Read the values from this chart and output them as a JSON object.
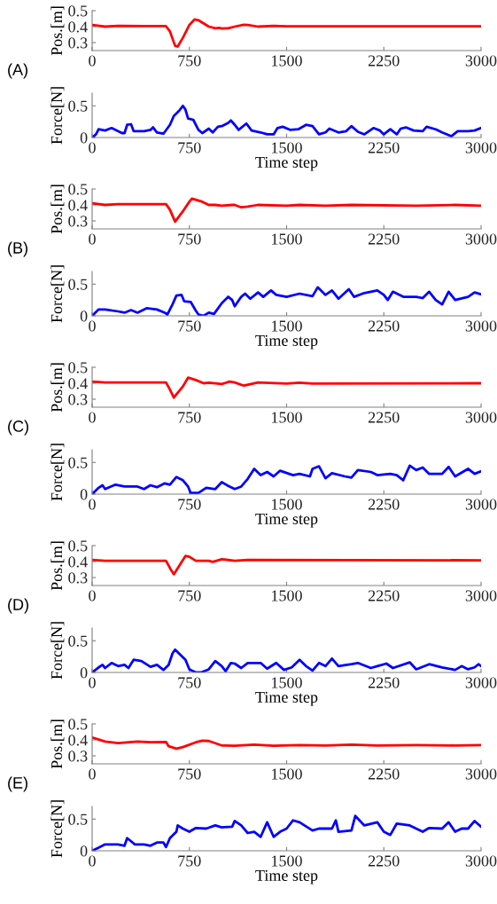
{
  "chart_data": [
    {
      "type": "line",
      "ylabel": "Pos.[m]",
      "annotations": [
        "(A)"
      ],
      "xlim": [
        0,
        3000
      ],
      "xticks": [
        0,
        750,
        1500,
        2250,
        3000
      ],
      "ylim": [
        0.25,
        0.5
      ],
      "yticks": [
        0.3,
        0.4,
        0.5
      ],
      "series": [
        {
          "color": "#ff0000",
          "x": [
            0,
            100,
            200,
            400,
            570,
            600,
            640,
            660,
            700,
            750,
            790,
            820,
            900,
            950,
            980,
            1000,
            1050,
            1100,
            1170,
            1200,
            1280,
            1400,
            1500,
            3000
          ],
          "values": [
            0.41,
            0.4,
            0.405,
            0.403,
            0.403,
            0.37,
            0.28,
            0.275,
            0.33,
            0.41,
            0.445,
            0.44,
            0.4,
            0.39,
            0.392,
            0.388,
            0.39,
            0.4,
            0.412,
            0.41,
            0.4,
            0.405,
            0.402,
            0.402
          ]
        }
      ]
    },
    {
      "type": "line",
      "ylabel": "Force[N]",
      "xlabel": "Time step",
      "xlim": [
        0,
        3000
      ],
      "xticks": [
        0,
        750,
        1500,
        2250,
        3000
      ],
      "ylim": [
        0,
        0.7
      ],
      "yticks": [
        0,
        0.5
      ],
      "series": [
        {
          "color": "#0000ff",
          "x": [
            0,
            30,
            50,
            100,
            150,
            230,
            250,
            270,
            300,
            320,
            400,
            450,
            470,
            500,
            550,
            600,
            630,
            670,
            700,
            720,
            740,
            780,
            820,
            850,
            900,
            930,
            970,
            1000,
            1050,
            1070,
            1100,
            1130,
            1190,
            1230,
            1300,
            1350,
            1400,
            1430,
            1470,
            1530,
            1590,
            1650,
            1700,
            1750,
            1800,
            1830,
            1900,
            1960,
            2000,
            2050,
            2100,
            2170,
            2220,
            2250,
            2300,
            2350,
            2380,
            2420,
            2480,
            2550,
            2580,
            2650,
            2700,
            2770,
            2820,
            2900,
            2950,
            3000
          ],
          "values": [
            0,
            0.05,
            0.13,
            0.11,
            0.15,
            0.07,
            0.07,
            0.2,
            0.21,
            0.1,
            0.1,
            0.12,
            0.16,
            0.08,
            0.06,
            0.2,
            0.34,
            0.42,
            0.5,
            0.44,
            0.3,
            0.28,
            0.12,
            0.07,
            0.14,
            0.08,
            0.17,
            0.18,
            0.23,
            0.27,
            0.2,
            0.12,
            0.22,
            0.11,
            0.08,
            0.05,
            0.05,
            0.15,
            0.17,
            0.12,
            0.13,
            0.2,
            0.18,
            0.05,
            0.08,
            0.14,
            0.08,
            0.1,
            0.18,
            0.09,
            0.05,
            0.15,
            0.11,
            0.05,
            0.13,
            0.05,
            0.14,
            0.16,
            0.11,
            0.1,
            0.17,
            0.13,
            0.08,
            0.02,
            0.1,
            0.1,
            0.11,
            0.15
          ]
        }
      ]
    },
    {
      "type": "line",
      "ylabel": "Pos.[m]",
      "annotations": [
        "(B)"
      ],
      "xlim": [
        0,
        3000
      ],
      "xticks": [
        0,
        750,
        1500,
        2250,
        3000
      ],
      "ylim": [
        0.25,
        0.5
      ],
      "yticks": [
        0.3,
        0.4,
        0.5
      ],
      "series": [
        {
          "color": "#ff0000",
          "x": [
            0,
            100,
            200,
            570,
            600,
            640,
            700,
            750,
            770,
            850,
            900,
            950,
            1000,
            1080,
            1100,
            1150,
            1200,
            1280,
            1500,
            1600,
            1800,
            2000,
            2500,
            2800,
            3000
          ],
          "values": [
            0.41,
            0.4,
            0.405,
            0.405,
            0.37,
            0.295,
            0.36,
            0.42,
            0.44,
            0.42,
            0.4,
            0.4,
            0.395,
            0.4,
            0.4,
            0.385,
            0.39,
            0.4,
            0.395,
            0.4,
            0.395,
            0.4,
            0.395,
            0.4,
            0.395
          ]
        }
      ]
    },
    {
      "type": "line",
      "ylabel": "Force[N]",
      "xlabel": "Time step",
      "xlim": [
        0,
        3000
      ],
      "xticks": [
        0,
        750,
        1500,
        2250,
        3000
      ],
      "ylim": [
        0,
        0.7
      ],
      "yticks": [
        0,
        0.5
      ],
      "series": [
        {
          "color": "#0000ff",
          "x": [
            0,
            50,
            100,
            200,
            250,
            300,
            350,
            420,
            500,
            560,
            580,
            620,
            650,
            690,
            710,
            760,
            800,
            820,
            860,
            900,
            940,
            1000,
            1050,
            1080,
            1100,
            1150,
            1180,
            1220,
            1280,
            1320,
            1380,
            1420,
            1500,
            1600,
            1700,
            1740,
            1800,
            1850,
            1900,
            1980,
            2020,
            2100,
            2200,
            2250,
            2280,
            2320,
            2400,
            2500,
            2550,
            2600,
            2650,
            2700,
            2750,
            2800,
            2900,
            2950,
            3000
          ],
          "values": [
            0,
            0.1,
            0.1,
            0.07,
            0.05,
            0.09,
            0.05,
            0.12,
            0.1,
            0.05,
            0.02,
            0.18,
            0.32,
            0.33,
            0.23,
            0.22,
            0.08,
            0.02,
            0,
            0.05,
            0.03,
            0.2,
            0.3,
            0.25,
            0.15,
            0.3,
            0.35,
            0.27,
            0.37,
            0.3,
            0.4,
            0.33,
            0.3,
            0.35,
            0.31,
            0.45,
            0.33,
            0.4,
            0.27,
            0.42,
            0.3,
            0.36,
            0.4,
            0.33,
            0.25,
            0.38,
            0.3,
            0.3,
            0.28,
            0.38,
            0.25,
            0.18,
            0.38,
            0.25,
            0.3,
            0.37,
            0.34
          ]
        }
      ]
    },
    {
      "type": "line",
      "ylabel": "Pos.[m]",
      "annotations": [
        "(C)"
      ],
      "xlim": [
        0,
        3000
      ],
      "xticks": [
        0,
        750,
        1500,
        2250,
        3000
      ],
      "ylim": [
        0.25,
        0.5
      ],
      "yticks": [
        0.3,
        0.4,
        0.5
      ],
      "series": [
        {
          "color": "#ff0000",
          "x": [
            0,
            100,
            570,
            600,
            630,
            700,
            740,
            800,
            860,
            900,
            1000,
            1060,
            1100,
            1170,
            1280,
            1500,
            1600,
            1700,
            3000
          ],
          "values": [
            0.41,
            0.405,
            0.405,
            0.36,
            0.31,
            0.38,
            0.435,
            0.42,
            0.4,
            0.403,
            0.395,
            0.41,
            0.405,
            0.385,
            0.405,
            0.398,
            0.403,
            0.398,
            0.4
          ]
        }
      ]
    },
    {
      "type": "line",
      "ylabel": "Force[N]",
      "xlabel": "Time step",
      "xlim": [
        0,
        3000
      ],
      "xticks": [
        0,
        750,
        1500,
        2250,
        3000
      ],
      "ylim": [
        0,
        0.7
      ],
      "yticks": [
        0,
        0.5
      ],
      "series": [
        {
          "color": "#0000ff",
          "x": [
            0,
            50,
            80,
            100,
            180,
            250,
            350,
            400,
            450,
            500,
            560,
            600,
            650,
            700,
            740,
            760,
            820,
            880,
            950,
            1000,
            1050,
            1100,
            1150,
            1200,
            1250,
            1300,
            1350,
            1400,
            1450,
            1550,
            1600,
            1680,
            1700,
            1750,
            1800,
            1850,
            1950,
            2000,
            2050,
            2150,
            2200,
            2300,
            2350,
            2400,
            2450,
            2500,
            2550,
            2600,
            2700,
            2750,
            2800,
            2900,
            2950,
            3000
          ],
          "values": [
            0,
            0.1,
            0.14,
            0.08,
            0.15,
            0.12,
            0.12,
            0.08,
            0.14,
            0.11,
            0.17,
            0.15,
            0.27,
            0.22,
            0.12,
            0.02,
            0.02,
            0.1,
            0.08,
            0.19,
            0.13,
            0.08,
            0.12,
            0.24,
            0.4,
            0.3,
            0.35,
            0.28,
            0.37,
            0.3,
            0.32,
            0.28,
            0.4,
            0.44,
            0.25,
            0.33,
            0.28,
            0.26,
            0.38,
            0.35,
            0.3,
            0.32,
            0.3,
            0.22,
            0.45,
            0.38,
            0.42,
            0.32,
            0.32,
            0.43,
            0.28,
            0.4,
            0.32,
            0.36
          ]
        }
      ]
    },
    {
      "type": "line",
      "ylabel": "Pos.[m]",
      "annotations": [
        "(D)"
      ],
      "xlim": [
        0,
        3000
      ],
      "xticks": [
        0,
        750,
        1500,
        2250,
        3000
      ],
      "ylim": [
        0.25,
        0.5
      ],
      "yticks": [
        0.3,
        0.4,
        0.5
      ],
      "series": [
        {
          "color": "#ff0000",
          "x": [
            0,
            100,
            570,
            600,
            630,
            700,
            720,
            750,
            800,
            900,
            930,
            1000,
            1100,
            1200,
            3000
          ],
          "values": [
            0.41,
            0.405,
            0.405,
            0.36,
            0.32,
            0.41,
            0.435,
            0.43,
            0.405,
            0.405,
            0.398,
            0.415,
            0.405,
            0.41,
            0.408
          ]
        }
      ]
    },
    {
      "type": "line",
      "ylabel": "Force[N]",
      "xlabel": "Time step",
      "xlim": [
        0,
        3000
      ],
      "xticks": [
        0,
        750,
        1500,
        2250,
        3000
      ],
      "ylim": [
        0,
        0.7
      ],
      "yticks": [
        0,
        0.5
      ],
      "series": [
        {
          "color": "#0000ff",
          "x": [
            0,
            50,
            80,
            100,
            150,
            200,
            250,
            280,
            320,
            380,
            450,
            500,
            550,
            590,
            620,
            640,
            680,
            720,
            750,
            800,
            840,
            900,
            950,
            1000,
            1030,
            1070,
            1100,
            1150,
            1200,
            1300,
            1350,
            1420,
            1480,
            1540,
            1600,
            1650,
            1700,
            1750,
            1800,
            1850,
            1900,
            2000,
            2050,
            2150,
            2200,
            2270,
            2320,
            2450,
            2500,
            2600,
            2700,
            2800,
            2850,
            2900,
            2950,
            2980,
            3000
          ],
          "values": [
            0,
            0.08,
            0.12,
            0.07,
            0.15,
            0.1,
            0.12,
            0.07,
            0.2,
            0.18,
            0.09,
            0.12,
            0.04,
            0.12,
            0.3,
            0.36,
            0.28,
            0.2,
            0.05,
            0,
            0,
            0.05,
            0.18,
            0.1,
            0.02,
            0.15,
            0.14,
            0.07,
            0.15,
            0.15,
            0.06,
            0.15,
            0.04,
            0.08,
            0.2,
            0.1,
            0.03,
            0.15,
            0.1,
            0.22,
            0.1,
            0.13,
            0.15,
            0.07,
            0.1,
            0.14,
            0.07,
            0.16,
            0.05,
            0.13,
            0.08,
            0.04,
            0.1,
            0.05,
            0.08,
            0.13,
            0.1
          ]
        }
      ]
    },
    {
      "type": "line",
      "ylabel": "Pos.[m]",
      "annotations": [
        "(E)"
      ],
      "xlim": [
        0,
        3000
      ],
      "xticks": [
        0,
        750,
        1500,
        2250,
        3000
      ],
      "ylim": [
        0.25,
        0.5
      ],
      "yticks": [
        0.3,
        0.4,
        0.5
      ],
      "series": [
        {
          "color": "#ff0000",
          "x": [
            0,
            100,
            200,
            350,
            450,
            570,
            590,
            650,
            700,
            800,
            850,
            900,
            1000,
            1100,
            1250,
            1400,
            1600,
            1800,
            2000,
            2200,
            2500,
            2800,
            3000
          ],
          "values": [
            0.415,
            0.39,
            0.38,
            0.39,
            0.385,
            0.387,
            0.36,
            0.345,
            0.355,
            0.385,
            0.395,
            0.393,
            0.365,
            0.363,
            0.37,
            0.363,
            0.367,
            0.365,
            0.37,
            0.365,
            0.367,
            0.365,
            0.367
          ]
        }
      ]
    },
    {
      "type": "line",
      "ylabel": "Force[N]",
      "xlabel": "Time step",
      "xlim": [
        0,
        3000
      ],
      "xticks": [
        0,
        750,
        1500,
        2250,
        3000
      ],
      "ylim": [
        0,
        0.7
      ],
      "yticks": [
        0,
        0.5
      ],
      "series": [
        {
          "color": "#0000ff",
          "x": [
            0,
            50,
            100,
            200,
            250,
            270,
            300,
            330,
            400,
            450,
            500,
            550,
            570,
            600,
            650,
            660,
            700,
            750,
            800,
            880,
            950,
            1000,
            1080,
            1100,
            1150,
            1200,
            1250,
            1300,
            1350,
            1400,
            1450,
            1500,
            1550,
            1600,
            1700,
            1750,
            1850,
            1880,
            1900,
            2000,
            2030,
            2100,
            2200,
            2250,
            2300,
            2350,
            2450,
            2500,
            2550,
            2600,
            2700,
            2750,
            2800,
            2850,
            2900,
            2950,
            3000
          ],
          "values": [
            0,
            0.05,
            0.1,
            0.1,
            0.08,
            0.2,
            0.15,
            0.1,
            0.1,
            0.08,
            0.13,
            0.13,
            0.06,
            0.2,
            0.3,
            0.4,
            0.35,
            0.3,
            0.36,
            0.35,
            0.4,
            0.37,
            0.38,
            0.47,
            0.4,
            0.28,
            0.3,
            0.22,
            0.45,
            0.22,
            0.3,
            0.35,
            0.48,
            0.45,
            0.32,
            0.35,
            0.35,
            0.48,
            0.3,
            0.32,
            0.55,
            0.4,
            0.45,
            0.3,
            0.25,
            0.43,
            0.4,
            0.35,
            0.3,
            0.36,
            0.35,
            0.45,
            0.3,
            0.35,
            0.35,
            0.47,
            0.38
          ]
        }
      ]
    }
  ]
}
